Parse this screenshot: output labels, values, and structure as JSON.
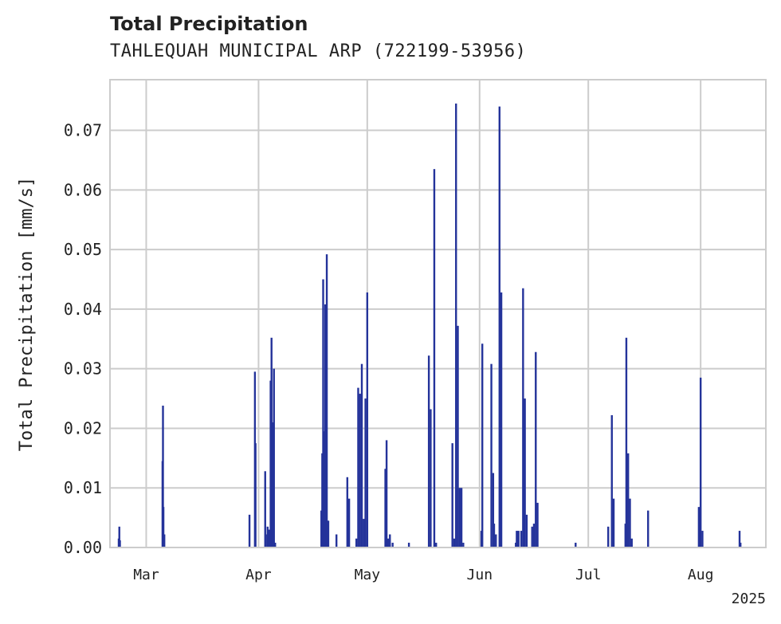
{
  "chart_data": {
    "type": "bar",
    "title": "Total Precipitation",
    "subtitle": "TAHLEQUAH MUNICIPAL ARP (722199-53956)",
    "xlabel": "",
    "ylabel": "Total Precipitation [mm/s]",
    "ylim": [
      0,
      0.0785
    ],
    "xlim": [
      "2025-02-19",
      "2025-08-19"
    ],
    "yticks": [
      "0.00",
      "0.01",
      "0.02",
      "0.03",
      "0.04",
      "0.05",
      "0.06",
      "0.07"
    ],
    "xticks": [
      {
        "date": "2025-03-01",
        "label": "Mar"
      },
      {
        "date": "2025-04-01",
        "label": "Apr"
      },
      {
        "date": "2025-05-01",
        "label": "May"
      },
      {
        "date": "2025-06-01",
        "label": "Jun"
      },
      {
        "date": "2025-07-01",
        "label": "Jul"
      },
      {
        "date": "2025-08-01",
        "label": "Aug"
      }
    ],
    "year_label": "2025",
    "grid": true,
    "bar_color": "#24339a",
    "series": [
      {
        "values": [
          [
            "2025-02-21T10:00",
            0.0015
          ],
          [
            "2025-02-21T14:00",
            0.0035
          ],
          [
            "2025-02-21T18:00",
            0.0012
          ],
          [
            "2025-03-05T12:00",
            0.0145
          ],
          [
            "2025-03-05T15:00",
            0.0238
          ],
          [
            "2025-03-05T18:00",
            0.0068
          ],
          [
            "2025-03-06T00:00",
            0.0022
          ],
          [
            "2025-03-29T12:00",
            0.0055
          ],
          [
            "2025-03-31T00:00",
            0.0295
          ],
          [
            "2025-03-31T04:00",
            0.0175
          ],
          [
            "2025-04-02T20:00",
            0.0128
          ],
          [
            "2025-04-03T00:00",
            0.0022
          ],
          [
            "2025-04-03T12:00",
            0.0035
          ],
          [
            "2025-04-04T00:00",
            0.003
          ],
          [
            "2025-04-04T08:00",
            0.028
          ],
          [
            "2025-04-04T14:00",
            0.0352
          ],
          [
            "2025-04-04T20:00",
            0.021
          ],
          [
            "2025-04-05T06:00",
            0.03
          ],
          [
            "2025-04-05T14:00",
            0.0008
          ],
          [
            "2025-04-18T08:00",
            0.0062
          ],
          [
            "2025-04-18T14:00",
            0.0158
          ],
          [
            "2025-04-18T20:00",
            0.045
          ],
          [
            "2025-04-19T04:00",
            0.0195
          ],
          [
            "2025-04-19T10:00",
            0.0408
          ],
          [
            "2025-04-19T20:00",
            0.0492
          ],
          [
            "2025-04-20T06:00",
            0.0045
          ],
          [
            "2025-04-22T12:00",
            0.0022
          ],
          [
            "2025-04-25T12:00",
            0.0118
          ],
          [
            "2025-04-26T00:00",
            0.0082
          ],
          [
            "2025-04-28T00:00",
            0.0015
          ],
          [
            "2025-04-28T12:00",
            0.0268
          ],
          [
            "2025-04-29T00:00",
            0.0258
          ],
          [
            "2025-04-29T12:00",
            0.0308
          ],
          [
            "2025-04-30T00:00",
            0.0048
          ],
          [
            "2025-04-30T12:00",
            0.025
          ],
          [
            "2025-05-01T00:00",
            0.0428
          ],
          [
            "2025-05-06T00:00",
            0.0132
          ],
          [
            "2025-05-06T08:00",
            0.018
          ],
          [
            "2025-05-06T18:00",
            0.0015
          ],
          [
            "2025-05-07T06:00",
            0.0022
          ],
          [
            "2025-05-08T00:00",
            0.0008
          ],
          [
            "2025-05-12T12:00",
            0.0008
          ],
          [
            "2025-05-18T00:00",
            0.0322
          ],
          [
            "2025-05-18T12:00",
            0.0232
          ],
          [
            "2025-05-19T12:00",
            0.0635
          ],
          [
            "2025-05-20T00:00",
            0.0008
          ],
          [
            "2025-05-24T12:00",
            0.0175
          ],
          [
            "2025-05-25T00:00",
            0.0015
          ],
          [
            "2025-05-25T12:00",
            0.0745
          ],
          [
            "2025-05-26T00:00",
            0.0372
          ],
          [
            "2025-05-26T12:00",
            0.01
          ],
          [
            "2025-05-27T00:00",
            0.01
          ],
          [
            "2025-05-27T12:00",
            0.0008
          ],
          [
            "2025-06-01T12:00",
            0.0028
          ],
          [
            "2025-06-01T18:00",
            0.0342
          ],
          [
            "2025-06-04T06:00",
            0.0308
          ],
          [
            "2025-06-04T18:00",
            0.0125
          ],
          [
            "2025-06-05T00:00",
            0.004
          ],
          [
            "2025-06-05T12:00",
            0.0022
          ],
          [
            "2025-06-06T12:00",
            0.074
          ],
          [
            "2025-06-07T00:00",
            0.0428
          ],
          [
            "2025-06-11T00:00",
            0.0008
          ],
          [
            "2025-06-11T06:00",
            0.0028
          ],
          [
            "2025-06-11T18:00",
            0.0028
          ],
          [
            "2025-06-12T12:00",
            0.0028
          ],
          [
            "2025-06-13T00:00",
            0.0435
          ],
          [
            "2025-06-13T12:00",
            0.025
          ],
          [
            "2025-06-14T00:00",
            0.0055
          ],
          [
            "2025-06-15T12:00",
            0.0035
          ],
          [
            "2025-06-16T00:00",
            0.004
          ],
          [
            "2025-06-16T12:00",
            0.0328
          ],
          [
            "2025-06-17T00:00",
            0.0075
          ],
          [
            "2025-06-27T12:00",
            0.0008
          ],
          [
            "2025-07-06T12:00",
            0.0035
          ],
          [
            "2025-07-07T12:00",
            0.0222
          ],
          [
            "2025-07-08T00:00",
            0.0082
          ],
          [
            "2025-07-11T06:00",
            0.004
          ],
          [
            "2025-07-11T12:00",
            0.0352
          ],
          [
            "2025-07-12T00:00",
            0.0158
          ],
          [
            "2025-07-12T12:00",
            0.0082
          ],
          [
            "2025-07-13T00:00",
            0.0015
          ],
          [
            "2025-07-17T12:00",
            0.0062
          ],
          [
            "2025-07-31T12:00",
            0.0068
          ],
          [
            "2025-08-01T00:00",
            0.0285
          ],
          [
            "2025-08-01T12:00",
            0.0028
          ],
          [
            "2025-08-11T18:00",
            0.0028
          ],
          [
            "2025-08-12T00:00",
            0.0008
          ]
        ]
      }
    ]
  }
}
